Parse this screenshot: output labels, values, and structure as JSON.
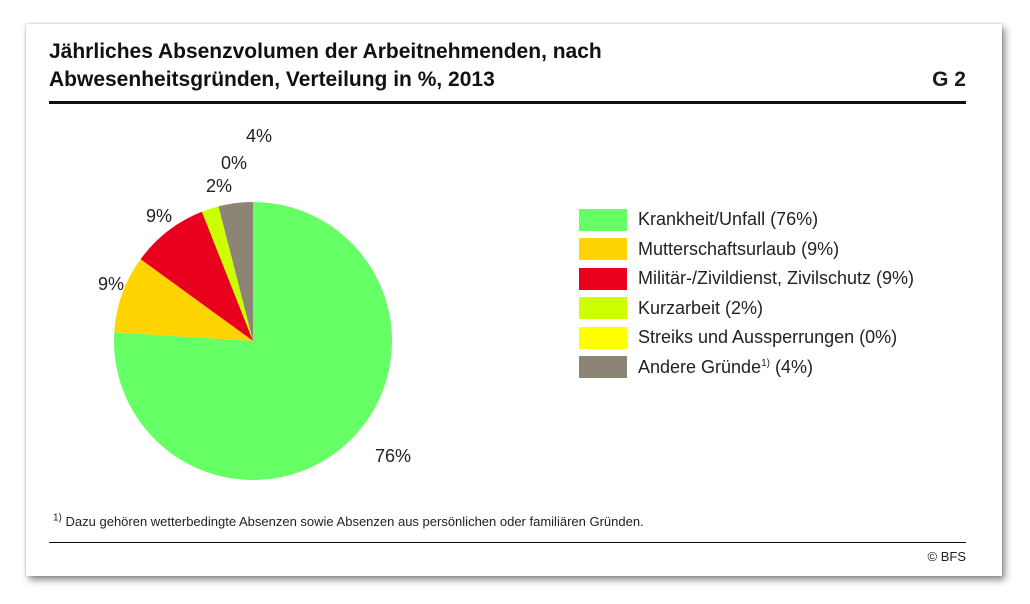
{
  "header": {
    "title_line1": "Jährliches Absenzvolumen der Arbeitnehmenden, nach",
    "title_line2": "Abwesenheitsgründen, Verteilung in %, 2013",
    "graphic_id": "G 2"
  },
  "chart_data": {
    "type": "pie",
    "title": "Jährliches Absenzvolumen der Arbeitnehmenden, nach Abwesenheitsgründen, Verteilung in %, 2013",
    "unit": "%",
    "slices": [
      {
        "name": "Krankheit/Unfall",
        "value": 76,
        "label": "76%",
        "legend": "Krankheit/Unfall (76%)",
        "color": "#66ff66"
      },
      {
        "name": "Mutterschaftsurlaub",
        "value": 9,
        "label": "9%",
        "legend": "Mutterschaftsurlaub (9%)",
        "color": "#ffd400"
      },
      {
        "name": "Militär-/Zivildienst, Zivilschutz",
        "value": 9,
        "label": "9%",
        "legend": "Militär-/Zivildienst, Zivilschutz (9%)",
        "color": "#e8001e"
      },
      {
        "name": "Kurzarbeit",
        "value": 2,
        "label": "2%",
        "legend": "Kurzarbeit (2%)",
        "color": "#ccff00"
      },
      {
        "name": "Streiks und Aussperrungen",
        "value": 0,
        "label": "0%",
        "legend": "Streiks und Aussperrungen (0%)",
        "color": "#ffff00"
      },
      {
        "name": "Andere Gründe",
        "value": 4,
        "label": "4%",
        "legend_prefix": "Andere Gründe",
        "legend_sup": "1)",
        "legend_suffix": " (4%)",
        "color": "#8c8474"
      }
    ],
    "legend_position": "right"
  },
  "footnote": {
    "marker": "1)",
    "text": " Dazu gehören wetterbedingte Absenzen sowie Absenzen aus persönlichen oder familiären Gründen."
  },
  "source": "© BFS"
}
